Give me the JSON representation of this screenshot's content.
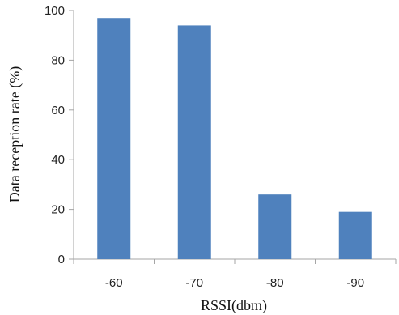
{
  "chart_data": {
    "type": "bar",
    "categories": [
      "-60",
      "-70",
      "-80",
      "-90"
    ],
    "values": [
      97,
      94,
      26,
      19
    ],
    "xlabel": "RSSI(dbm)",
    "ylabel": "Data reception rate (%)",
    "ylim": [
      0,
      100
    ],
    "yticks": [
      0,
      20,
      40,
      60,
      80,
      100
    ],
    "grid": false,
    "legend": "none",
    "colors": {
      "bar": "#4f81bd",
      "axis": "#a6a6a6"
    }
  }
}
